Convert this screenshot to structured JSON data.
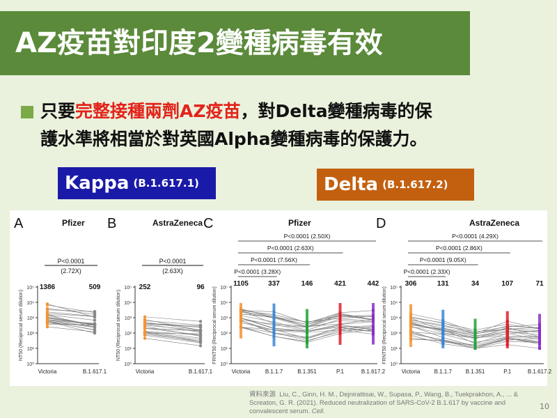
{
  "title": "AZ疫苗對印度2變種病毒有效",
  "bullet": {
    "line1_pre": "只要",
    "line1_highlight": "完整接種兩劑AZ疫苗",
    "line1_post": "，對Delta變種病毒的保",
    "line2": "護水準將相當於對英國Alpha變種病毒的保護力。"
  },
  "labels": {
    "kappa_name": "Kappa",
    "kappa_code": "(B.1.617.1)",
    "delta_name": "Delta",
    "delta_code": "(B.1.617.2)"
  },
  "colors": {
    "title_bg": "#5a8a3a",
    "kappa_bg": "#1a1aa8",
    "delta_bg": "#c3600f",
    "highlight": "#e2231a"
  },
  "chart_data": [
    {
      "type": "scatter",
      "panel": "A",
      "title": "Pfizer",
      "ylabel": "NT50 (Reciprocal serum dilution)",
      "categories": [
        "Victoria",
        "B.1.617.1"
      ],
      "medians": [
        1386,
        509
      ],
      "annotation": [
        "P<0.0001",
        "(2.72X)"
      ],
      "y_scale": "log",
      "yticks": [
        "10⁰",
        "10¹",
        "10²",
        "10³",
        "10⁴",
        "10⁵"
      ]
    },
    {
      "type": "scatter",
      "panel": "B",
      "title": "AstraZeneca",
      "ylabel": "NT50 (Reciprocal serum dilution)",
      "categories": [
        "Victoria",
        "B.1.617.1"
      ],
      "medians": [
        252,
        96
      ],
      "annotation": [
        "P<0.0001",
        "(2.63X)"
      ],
      "y_scale": "log",
      "yticks": [
        "10⁰",
        "10¹",
        "10²",
        "10³",
        "10⁴",
        "10⁵"
      ]
    },
    {
      "type": "scatter",
      "panel": "C",
      "title": "Pfizer",
      "ylabel": "FRNT50 (Reciprocal serum dilution)",
      "categories": [
        "Victoria",
        "B.1.1.7",
        "B.1.351",
        "P.1",
        "B.1.617.2"
      ],
      "medians": [
        1105,
        337,
        146,
        421,
        442
      ],
      "comparisons": [
        "P<0.0001 (2.50X)",
        "P<0.0001 (2.63X)",
        "P<0.0001 (7.56X)",
        "P<0.0001 (3.28X)"
      ],
      "y_scale": "log",
      "yticks": [
        "10⁰",
        "10¹",
        "10²",
        "10³",
        "10⁴",
        "10⁵"
      ]
    },
    {
      "type": "scatter",
      "panel": "D",
      "title": "AstraZeneca",
      "ylabel": "FRNT50 (Reciprocal serum dilution)",
      "categories": [
        "Victoria",
        "B.1.1.7",
        "B.1.351",
        "P.1",
        "B.1.617.2"
      ],
      "medians": [
        306,
        131,
        34,
        107,
        71
      ],
      "comparisons": [
        "P<0.0001 (4.29X)",
        "P<0.0001 (2.86X)",
        "P<0.0001 (9.05X)",
        "P<0.0001 (2.33X)"
      ],
      "y_scale": "log",
      "yticks": [
        "10⁰",
        "10¹",
        "10²",
        "10³",
        "10⁴",
        "10⁵"
      ]
    }
  ],
  "citation": {
    "lead": "資料來源",
    "text": "Liu, C., Ginn, H. M., Dejnirattisai, W., Supasa, P., Wang, B., Tuekprakhon, A., ... & Screaton, G. R. (2021). Reduced neutralization of SARS-CoV-2 B.1.617 by vaccine and convalescent serum.",
    "journal": "Cell."
  },
  "page_number": "10"
}
